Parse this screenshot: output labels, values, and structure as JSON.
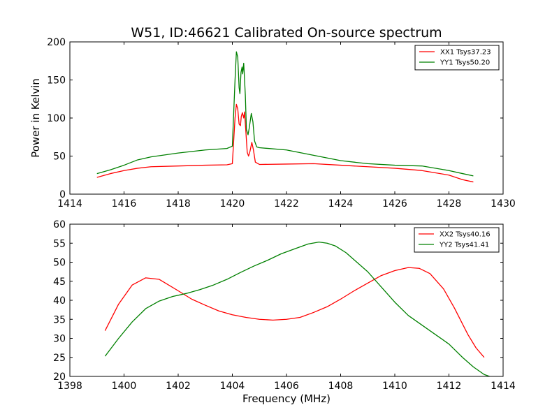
{
  "colors": {
    "xx": "#ff0000",
    "yy": "#008000",
    "frame": "#000000"
  },
  "chart_data": [
    {
      "type": "line",
      "title": "W51, ID:46621 Calibrated On-source spectrum",
      "xlabel": "",
      "ylabel": "Power in Kelvin",
      "xlim": [
        1414,
        1430
      ],
      "ylim": [
        0,
        200
      ],
      "xticks": [
        "1414",
        "1416",
        "1418",
        "1420",
        "1422",
        "1424",
        "1426",
        "1428",
        "1430"
      ],
      "yticks": [
        "0",
        "50",
        "100",
        "150",
        "200"
      ],
      "grid": false,
      "legend_position": "top-right",
      "series": [
        {
          "name": "XX1 Tsys37.23",
          "color": "#ff0000",
          "points": [
            [
              1415.0,
              22
            ],
            [
              1415.5,
              27
            ],
            [
              1416.0,
              31
            ],
            [
              1416.5,
              34
            ],
            [
              1417.0,
              36
            ],
            [
              1418.0,
              37
            ],
            [
              1419.0,
              38
            ],
            [
              1419.8,
              38.5
            ],
            [
              1420.0,
              40
            ],
            [
              1420.1,
              100
            ],
            [
              1420.15,
              118
            ],
            [
              1420.2,
              112
            ],
            [
              1420.25,
              92
            ],
            [
              1420.3,
              90
            ],
            [
              1420.33,
              102
            ],
            [
              1420.37,
              107
            ],
            [
              1420.42,
              100
            ],
            [
              1420.45,
              108
            ],
            [
              1420.5,
              82
            ],
            [
              1420.55,
              55
            ],
            [
              1420.6,
              50
            ],
            [
              1420.65,
              56
            ],
            [
              1420.72,
              68
            ],
            [
              1420.78,
              58
            ],
            [
              1420.85,
              42
            ],
            [
              1421.0,
              39
            ],
            [
              1422.0,
              39.5
            ],
            [
              1423.0,
              40
            ],
            [
              1424.0,
              38
            ],
            [
              1425.0,
              36
            ],
            [
              1426.0,
              34
            ],
            [
              1427.0,
              31
            ],
            [
              1428.0,
              25
            ],
            [
              1428.5,
              19
            ],
            [
              1428.9,
              16
            ]
          ]
        },
        {
          "name": "YY1 Tsys50.20",
          "color": "#008000",
          "points": [
            [
              1415.0,
              27
            ],
            [
              1415.5,
              32
            ],
            [
              1416.0,
              38
            ],
            [
              1416.5,
              45
            ],
            [
              1417.0,
              49
            ],
            [
              1418.0,
              54
            ],
            [
              1419.0,
              58
            ],
            [
              1419.8,
              60
            ],
            [
              1420.0,
              63
            ],
            [
              1420.1,
              150
            ],
            [
              1420.15,
              187
            ],
            [
              1420.2,
              180
            ],
            [
              1420.25,
              140
            ],
            [
              1420.28,
              132
            ],
            [
              1420.32,
              160
            ],
            [
              1420.36,
              167
            ],
            [
              1420.38,
              158
            ],
            [
              1420.42,
              172
            ],
            [
              1420.48,
              130
            ],
            [
              1420.52,
              85
            ],
            [
              1420.58,
              78
            ],
            [
              1420.63,
              88
            ],
            [
              1420.7,
              106
            ],
            [
              1420.76,
              95
            ],
            [
              1420.82,
              70
            ],
            [
              1420.9,
              62
            ],
            [
              1421.0,
              61
            ],
            [
              1422.0,
              58
            ],
            [
              1423.0,
              51
            ],
            [
              1424.0,
              44
            ],
            [
              1425.0,
              40
            ],
            [
              1426.0,
              38
            ],
            [
              1427.0,
              37
            ],
            [
              1428.0,
              31
            ],
            [
              1428.5,
              27
            ],
            [
              1428.9,
              24
            ]
          ]
        }
      ]
    },
    {
      "type": "line",
      "title": "",
      "xlabel": "Frequency (MHz)",
      "ylabel": "",
      "xlim": [
        1398,
        1414
      ],
      "ylim": [
        20,
        60
      ],
      "xticks": [
        "1398",
        "1400",
        "1402",
        "1404",
        "1406",
        "1408",
        "1410",
        "1412",
        "1414"
      ],
      "yticks": [
        "20",
        "25",
        "30",
        "35",
        "40",
        "45",
        "50",
        "55",
        "60"
      ],
      "grid": false,
      "legend_position": "top-right",
      "series": [
        {
          "name": "XX2 Tsys40.16",
          "color": "#ff0000",
          "points": [
            [
              1399.3,
              32
            ],
            [
              1399.8,
              39
            ],
            [
              1400.3,
              44
            ],
            [
              1400.8,
              45.9
            ],
            [
              1401.3,
              45.5
            ],
            [
              1402.0,
              42.5
            ],
            [
              1402.5,
              40.3
            ],
            [
              1403.0,
              38.7
            ],
            [
              1403.5,
              37.2
            ],
            [
              1404.0,
              36.2
            ],
            [
              1404.5,
              35.5
            ],
            [
              1405.0,
              35
            ],
            [
              1405.5,
              34.8
            ],
            [
              1406.0,
              35
            ],
            [
              1406.5,
              35.5
            ],
            [
              1407.0,
              36.8
            ],
            [
              1407.5,
              38.3
            ],
            [
              1408.0,
              40.3
            ],
            [
              1408.5,
              42.5
            ],
            [
              1409.0,
              44.5
            ],
            [
              1409.5,
              46.5
            ],
            [
              1410.0,
              47.8
            ],
            [
              1410.5,
              48.6
            ],
            [
              1410.9,
              48.4
            ],
            [
              1411.3,
              47
            ],
            [
              1411.8,
              43
            ],
            [
              1412.2,
              38
            ],
            [
              1412.7,
              31
            ],
            [
              1413.0,
              27.5
            ],
            [
              1413.3,
              25
            ]
          ]
        },
        {
          "name": "YY2 Tsys41.41",
          "color": "#008000",
          "points": [
            [
              1399.3,
              25.3
            ],
            [
              1399.8,
              30
            ],
            [
              1400.3,
              34.3
            ],
            [
              1400.8,
              37.8
            ],
            [
              1401.3,
              39.8
            ],
            [
              1401.8,
              41
            ],
            [
              1402.3,
              41.8
            ],
            [
              1402.8,
              42.8
            ],
            [
              1403.3,
              44
            ],
            [
              1403.8,
              45.5
            ],
            [
              1404.3,
              47.3
            ],
            [
              1404.8,
              49
            ],
            [
              1405.3,
              50.5
            ],
            [
              1405.8,
              52.2
            ],
            [
              1406.3,
              53.5
            ],
            [
              1406.8,
              54.8
            ],
            [
              1407.2,
              55.3
            ],
            [
              1407.5,
              55
            ],
            [
              1407.8,
              54.3
            ],
            [
              1408.2,
              52.5
            ],
            [
              1408.6,
              50
            ],
            [
              1409.0,
              47.5
            ],
            [
              1409.5,
              43.5
            ],
            [
              1410.0,
              39.5
            ],
            [
              1410.5,
              36
            ],
            [
              1411.0,
              33.5
            ],
            [
              1411.5,
              31
            ],
            [
              1412.0,
              28.5
            ],
            [
              1412.5,
              25
            ],
            [
              1412.9,
              22.5
            ],
            [
              1413.3,
              20.5
            ],
            [
              1413.5,
              20
            ]
          ]
        }
      ]
    }
  ]
}
